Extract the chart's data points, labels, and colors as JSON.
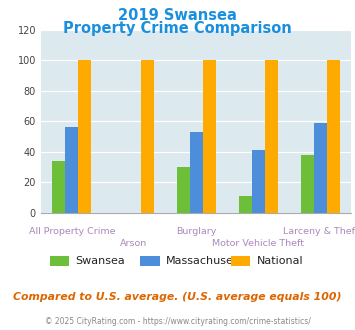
{
  "title_line1": "2019 Swansea",
  "title_line2": "Property Crime Comparison",
  "categories": [
    "All Property Crime",
    "Arson",
    "Burglary",
    "Motor Vehicle Theft",
    "Larceny & Theft"
  ],
  "series": {
    "Swansea": [
      34,
      0,
      30,
      11,
      38
    ],
    "Massachusetts": [
      56,
      0,
      53,
      41,
      59
    ],
    "National": [
      100,
      100,
      100,
      100,
      100
    ]
  },
  "colors": {
    "Swansea": "#6dbf3a",
    "Massachusetts": "#4d8edb",
    "National": "#ffaa00"
  },
  "ylim": [
    0,
    120
  ],
  "yticks": [
    0,
    20,
    40,
    60,
    80,
    100,
    120
  ],
  "title_color": "#1a8fde",
  "xlabel_color": "#aa88bb",
  "background_color": "#dce9ef",
  "footer_text": "Compared to U.S. average. (U.S. average equals 100)",
  "copyright_text": "© 2025 CityRating.com - https://www.cityrating.com/crime-statistics/",
  "footer_color": "#dd6600",
  "copyright_color": "#888888",
  "legend_names": [
    "Swansea",
    "Massachusetts",
    "National"
  ]
}
